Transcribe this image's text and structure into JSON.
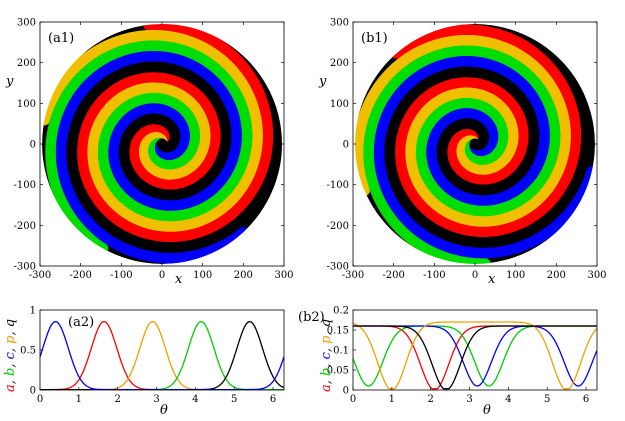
{
  "figure": {
    "spiral_panels": [
      {
        "label": "(a1)",
        "xlabel": "x",
        "ylabel": "y",
        "xticks": [
          "-300",
          "-200",
          "-100",
          "0",
          "100",
          "200",
          "300"
        ],
        "yticks": [
          "300",
          "200",
          "100",
          "0",
          "-100",
          "-200",
          "-300"
        ]
      },
      {
        "label": "(b1)",
        "xlabel": "x",
        "ylabel": "y",
        "xticks": [
          "-300",
          "-200",
          "-100",
          "0",
          "100",
          "200",
          "300"
        ],
        "yticks": [
          "300",
          "200",
          "100",
          "0",
          "-100",
          "-200",
          "-300"
        ]
      }
    ],
    "profile_panels": [
      {
        "label": "(a2)",
        "xlabel": "θ",
        "ylabel_parts": [
          {
            "text": "a",
            "color": "#ff0000"
          },
          {
            "text": ", ",
            "color": "#000000"
          },
          {
            "text": "b",
            "color": "#00cc00"
          },
          {
            "text": ", ",
            "color": "#000000"
          },
          {
            "text": "c",
            "color": "#0000ff"
          },
          {
            "text": ", ",
            "color": "#000000"
          },
          {
            "text": "p",
            "color": "#f0a000"
          },
          {
            "text": ", ",
            "color": "#000000"
          },
          {
            "text": "q",
            "color": "#000000"
          }
        ],
        "xticks": [
          "0",
          "1",
          "2",
          "3",
          "4",
          "5",
          "6"
        ],
        "yticks": [
          "0",
          "0.5",
          "1"
        ]
      },
      {
        "label": "(b2)",
        "xlabel": "θ",
        "ylabel_parts": [
          {
            "text": "a",
            "color": "#ff0000"
          },
          {
            "text": ", ",
            "color": "#000000"
          },
          {
            "text": "b",
            "color": "#00cc00"
          },
          {
            "text": ", ",
            "color": "#000000"
          },
          {
            "text": "c",
            "color": "#0000ff"
          },
          {
            "text": ", ",
            "color": "#000000"
          },
          {
            "text": "p",
            "color": "#f0a000"
          },
          {
            "text": ", ",
            "color": "#000000"
          },
          {
            "text": "q",
            "color": "#000000"
          }
        ],
        "xticks": [
          "0",
          "1",
          "2",
          "3",
          "4",
          "5",
          "6"
        ],
        "yticks": [
          "0",
          "0.05",
          "0.1",
          "0.15",
          "0.2"
        ]
      }
    ]
  },
  "chart_data": [
    {
      "type": "heatmap",
      "panel": "(a1)",
      "description_type": "spiral",
      "xlim": [
        -300,
        300
      ],
      "ylim": [
        -300,
        300
      ],
      "domain_radius": 295,
      "arms": 5,
      "arm_colors": [
        "#ff0000",
        "#f0c000",
        "#00dd00",
        "#0000ff",
        "#000000"
      ],
      "radial_pitch": 26
    },
    {
      "type": "heatmap",
      "panel": "(b1)",
      "description_type": "spiral",
      "xlim": [
        -300,
        300
      ],
      "ylim": [
        -300,
        300
      ],
      "domain_radius": 295,
      "arms": 5,
      "arm_colors": [
        "#ff0000",
        "#f0c000",
        "#00dd00",
        "#0000ff",
        "#000000"
      ],
      "radial_pitch": 26
    },
    {
      "type": "line",
      "panel": "(a2)",
      "xlim": [
        0,
        6.283
      ],
      "ylim": [
        0,
        1
      ],
      "series": [
        {
          "color": "#ff0000",
          "peaks": [
            1.65
          ],
          "amplitude": 0.85,
          "width": 0.55,
          "baseline": 0.005
        },
        {
          "color": "#f0a000",
          "peaks": [
            2.9
          ],
          "amplitude": 0.85,
          "width": 0.55,
          "baseline": 0.005
        },
        {
          "color": "#00cc00",
          "peaks": [
            4.15
          ],
          "amplitude": 0.85,
          "width": 0.55,
          "baseline": 0.005
        },
        {
          "color": "#000000",
          "peaks": [
            5.4
          ],
          "amplitude": 0.85,
          "width": 0.55,
          "baseline": 0.005
        },
        {
          "color": "#0000ff",
          "peaks": [
            0.4,
            6.68
          ],
          "amplitude": 0.85,
          "width": 0.55,
          "baseline": 0.005
        }
      ]
    },
    {
      "type": "line",
      "panel": "(b2)",
      "xlim": [
        0,
        6.283
      ],
      "ylim": [
        0,
        0.2
      ],
      "series": [
        {
          "color": "#ff0000",
          "base": 0.0,
          "plateau_value": 0.16,
          "dips": [
            2.1
          ],
          "peaks": [
            0.9,
            4.9
          ],
          "dip_depth": 0.16,
          "dip_width": 0.6
        },
        {
          "color": "#00cc00",
          "base": 0.0,
          "plateau_value": 0.16,
          "dips": [
            0.4,
            3.5
          ],
          "peaks": [],
          "dip_depth": 0.15,
          "dip_width": 0.6
        },
        {
          "color": "#0000ff",
          "base": 0.0,
          "plateau_value": 0.16,
          "dips": [
            3.2,
            5.8
          ],
          "peaks": [],
          "dip_depth": 0.15,
          "dip_width": 0.6
        },
        {
          "color": "#f0a000",
          "base": 0.0,
          "plateau_value": 0.17,
          "dips": [
            1.0,
            5.5
          ],
          "peaks": [],
          "dip_depth": 0.17,
          "dip_width": 0.6
        },
        {
          "color": "#000000",
          "base": 0.0,
          "plateau_value": 0.16,
          "dips": [
            2.4
          ],
          "peaks": [],
          "dip_depth": 0.16,
          "dip_width": 0.6
        }
      ]
    }
  ]
}
